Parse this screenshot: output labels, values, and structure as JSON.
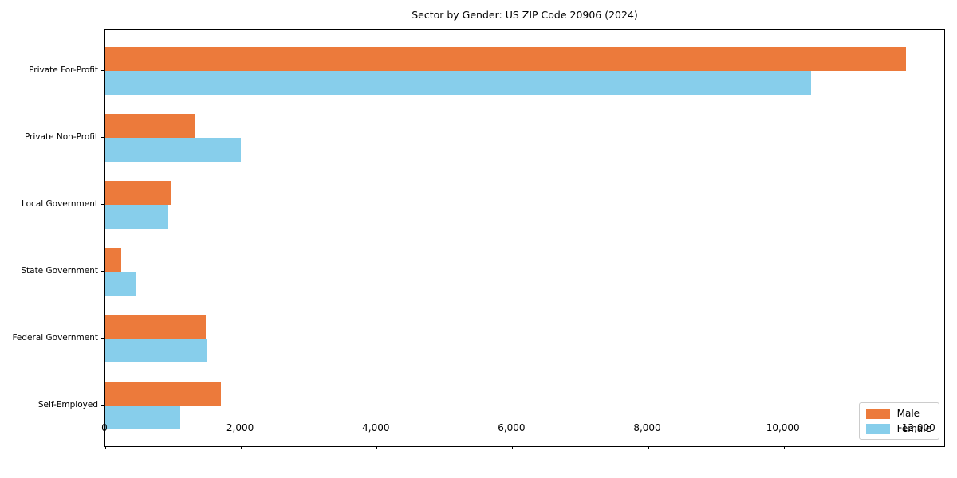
{
  "title": "Sector by Gender: US ZIP Code 20906 (2024)",
  "colors": {
    "male": "#EC7A3B",
    "female": "#87CEEB",
    "axis": "#000000",
    "legend_border": "#CCCCCC",
    "background": "#FFFFFF"
  },
  "chart_data": {
    "type": "bar",
    "orientation": "horizontal",
    "title": "Sector by Gender: US ZIP Code 20906 (2024)",
    "categories": [
      "Private For-Profit",
      "Private Non-Profit",
      "Local Government",
      "State Government",
      "Federal Government",
      "Self-Employed"
    ],
    "series": [
      {
        "name": "Male",
        "color": "#EC7A3B",
        "values": [
          11800,
          1320,
          960,
          230,
          1480,
          1700
        ]
      },
      {
        "name": "Female",
        "color": "#87CEEB",
        "values": [
          10400,
          2000,
          930,
          460,
          1500,
          1100
        ]
      }
    ],
    "xlabel": "",
    "ylabel": "",
    "xlim": [
      0,
      12390
    ],
    "x_ticks": [
      0,
      2000,
      4000,
      6000,
      8000,
      10000,
      12000
    ],
    "x_tick_labels": [
      "0",
      "2,000",
      "4,000",
      "6,000",
      "8,000",
      "10,000",
      "12,000"
    ],
    "grid": false,
    "legend": {
      "position": "lower right",
      "entries": [
        "Male",
        "Female"
      ]
    }
  }
}
